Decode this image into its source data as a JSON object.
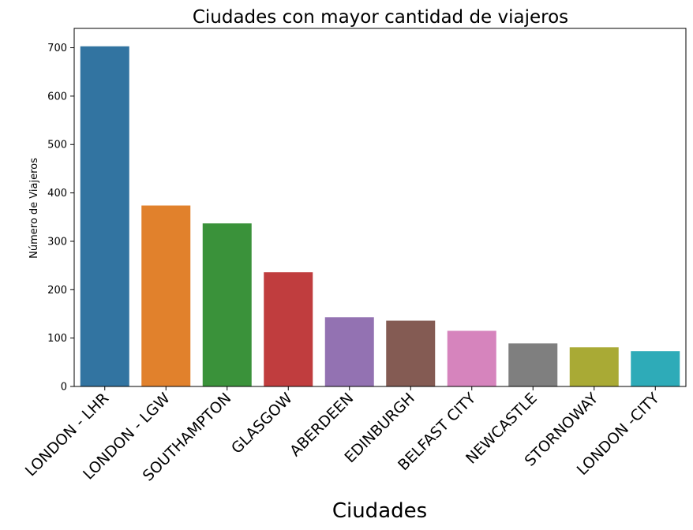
{
  "chart_data": {
    "type": "bar",
    "title": "Ciudades con mayor cantidad de viajeros",
    "xlabel": "Ciudades",
    "ylabel": "Número de Viajeros",
    "categories": [
      "LONDON - LHR",
      "LONDON - LGW",
      "SOUTHAMPTON",
      "GLASGOW",
      "ABERDEEN",
      "EDINBURGH",
      "BELFAST CITY",
      "NEWCASTLE",
      "STORNOWAY",
      "LONDON -CITY"
    ],
    "values": [
      703,
      374,
      337,
      236,
      143,
      136,
      115,
      89,
      81,
      73
    ],
    "colors": [
      "#3274a1",
      "#e1812c",
      "#3a923a",
      "#c03d3e",
      "#9372b2",
      "#845b53",
      "#d684bd",
      "#7f7f7f",
      "#a9aa35",
      "#2eabb8"
    ],
    "ylim": [
      0,
      740
    ],
    "yticks": [
      0,
      100,
      200,
      300,
      400,
      500,
      600,
      700
    ],
    "grid": false,
    "legend": "none"
  }
}
